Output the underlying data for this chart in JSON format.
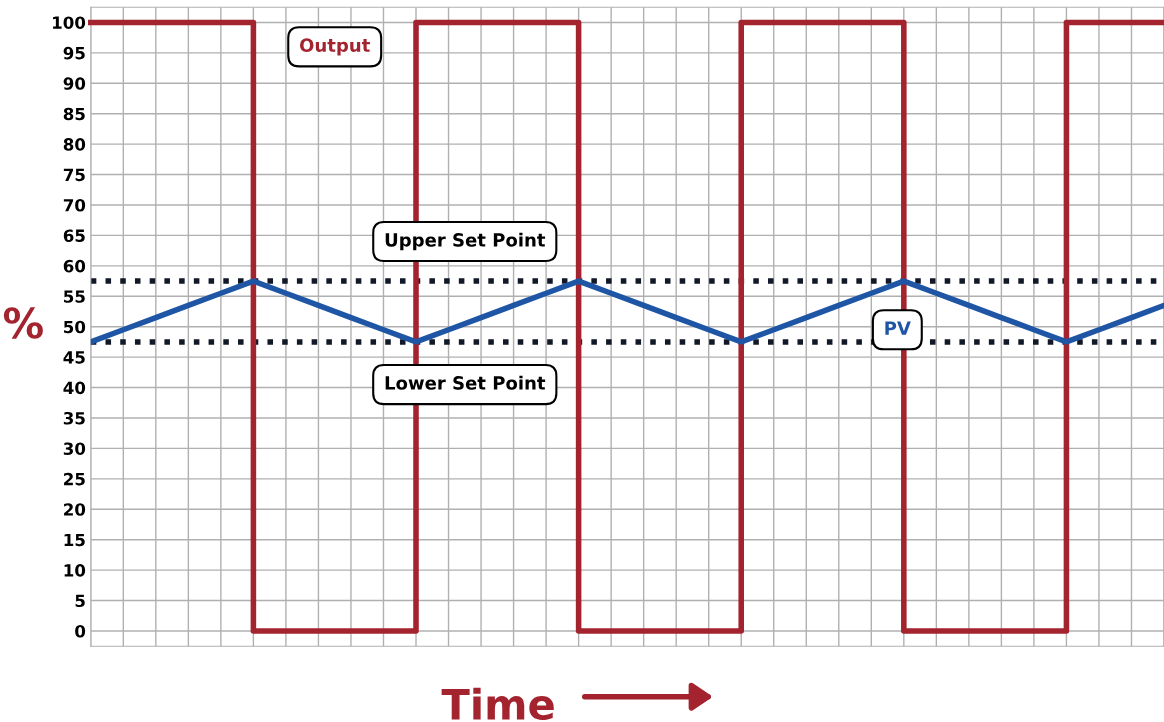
{
  "chart_data": {
    "type": "line",
    "xlabel": "Time",
    "ylabel": "%",
    "categories": [
      null,
      null,
      null,
      null,
      null,
      null,
      null,
      null,
      null,
      null,
      null,
      null,
      null,
      null,
      null,
      null,
      null,
      null,
      null,
      null,
      null,
      null,
      null,
      null,
      null,
      null,
      null,
      null,
      null,
      null,
      null,
      null,
      null,
      null
    ],
    "series": [
      {
        "name": "Output",
        "type": "step",
        "color": "#a3232e",
        "values": [
          100,
          100,
          100,
          100,
          100,
          0,
          0,
          0,
          0,
          0,
          100,
          100,
          100,
          100,
          100,
          0,
          0,
          0,
          0,
          0,
          100,
          100,
          100,
          100,
          100,
          0,
          0,
          0,
          0,
          0,
          100,
          100,
          100,
          100
        ]
      },
      {
        "name": "PV",
        "color": "#1f55a5",
        "values": [
          47.5,
          49.5,
          51.5,
          53.5,
          55.5,
          57.5,
          55.5,
          53.5,
          51.5,
          49.5,
          47.5,
          49.5,
          51.5,
          53.5,
          55.5,
          57.5,
          55.5,
          53.5,
          51.5,
          49.5,
          47.5,
          49.5,
          51.5,
          53.5,
          55.5,
          57.5,
          55.5,
          53.5,
          51.5,
          49.5,
          47.5,
          49.5,
          51.5,
          53.5
        ]
      }
    ],
    "ref_lines": [
      {
        "axis": "y",
        "value": 57.5,
        "label": "Upper Set Point",
        "color": "#111827",
        "line_style": "dotted"
      },
      {
        "axis": "y",
        "value": 47.5,
        "label": "Lower Set Point",
        "color": "#111827",
        "line_style": "dotted"
      }
    ],
    "ylim": [
      -2.5,
      102.5
    ],
    "yticks": [
      0,
      5,
      10,
      15,
      20,
      25,
      30,
      35,
      40,
      45,
      50,
      55,
      60,
      65,
      70,
      75,
      80,
      85,
      90,
      95,
      100
    ],
    "grid": true,
    "legend": false
  }
}
